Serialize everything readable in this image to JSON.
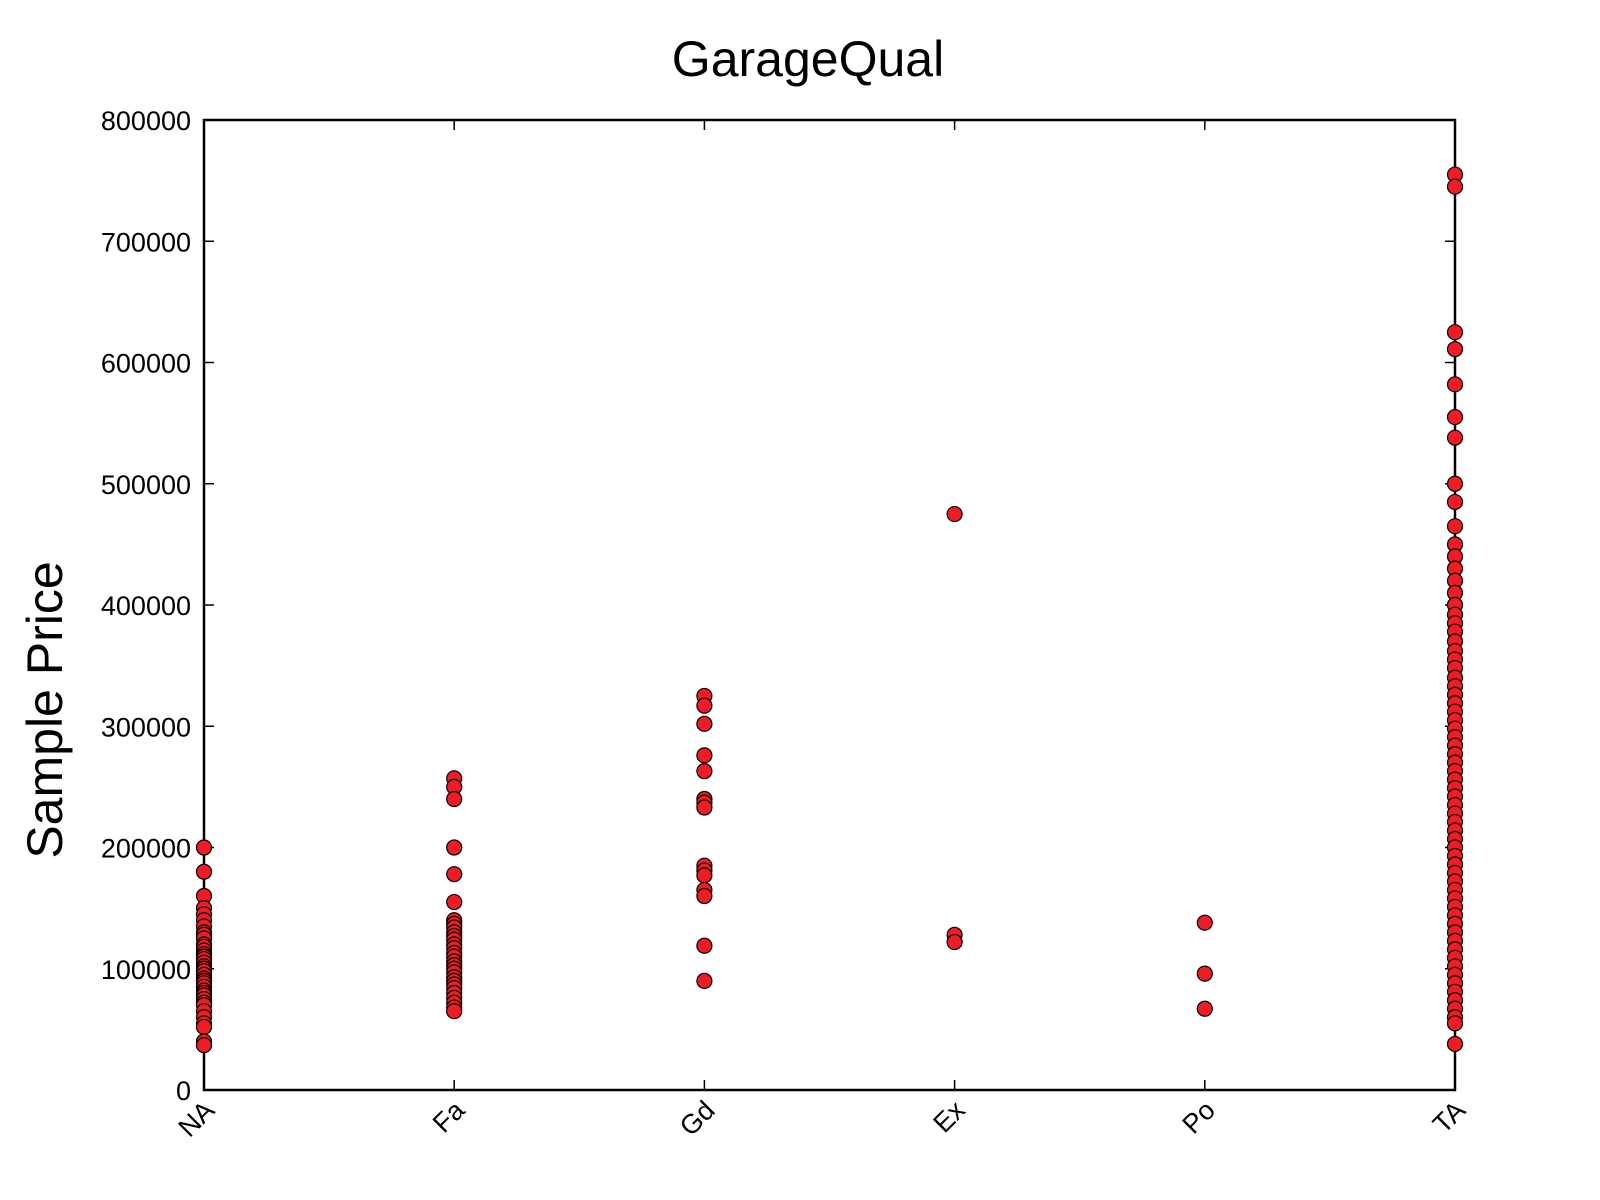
{
  "chart_data": {
    "type": "scatter",
    "title": "GarageQual",
    "xlabel": "",
    "ylabel": "Sample Price",
    "categories": [
      "NA",
      "Fa",
      "Gd",
      "Ex",
      "Po",
      "TA"
    ],
    "ylim": [
      0,
      800000
    ],
    "yticks": [
      0,
      100000,
      200000,
      300000,
      400000,
      500000,
      600000,
      700000,
      800000
    ],
    "grid": false,
    "legend": "none",
    "marker_color": "#ee1c24",
    "marker_edge_color": "#000000",
    "series": [
      {
        "category": "NA",
        "values": [
          200000,
          180000,
          160000,
          150000,
          145000,
          140000,
          135000,
          130000,
          128000,
          125000,
          120000,
          118000,
          115000,
          112000,
          110000,
          108000,
          105000,
          102000,
          100000,
          98000,
          95000,
          92000,
          90000,
          88000,
          85000,
          82000,
          80000,
          78000,
          75000,
          72000,
          70000,
          65000,
          60000,
          55000,
          52000,
          40000,
          37000
        ]
      },
      {
        "category": "Fa",
        "values": [
          257000,
          250000,
          240000,
          200000,
          178000,
          155000,
          140000,
          137000,
          134000,
          130000,
          127000,
          124000,
          120000,
          117000,
          113000,
          110000,
          106000,
          103000,
          100000,
          97000,
          93000,
          90000,
          87000,
          84000,
          80000,
          76000,
          72000,
          68000,
          65000
        ]
      },
      {
        "category": "Gd",
        "values": [
          325000,
          317000,
          302000,
          276000,
          263000,
          240000,
          237000,
          233000,
          185000,
          181000,
          177000,
          165000,
          160000,
          119000,
          90000
        ]
      },
      {
        "category": "Ex",
        "values": [
          475000,
          128000,
          122000
        ]
      },
      {
        "category": "Po",
        "values": [
          138000,
          96000,
          67000
        ]
      },
      {
        "category": "TA",
        "values": [
          755000,
          745000,
          625000,
          611000,
          582000,
          555000,
          538000,
          500000,
          485000,
          465000,
          450000,
          440000,
          430000,
          420000,
          410000,
          400000,
          392000,
          385000,
          378000,
          370000,
          362000,
          355000,
          348000,
          340000,
          333000,
          326000,
          319000,
          312000,
          305000,
          298000,
          291000,
          284000,
          277000,
          270000,
          263000,
          256000,
          249000,
          242000,
          235000,
          228000,
          221000,
          214000,
          207000,
          200000,
          193000,
          186000,
          179000,
          172000,
          165000,
          158000,
          151000,
          144000,
          137000,
          130000,
          123000,
          116000,
          109000,
          102000,
          95000,
          88000,
          81000,
          74000,
          67000,
          60000,
          55000,
          38000
        ]
      }
    ]
  }
}
